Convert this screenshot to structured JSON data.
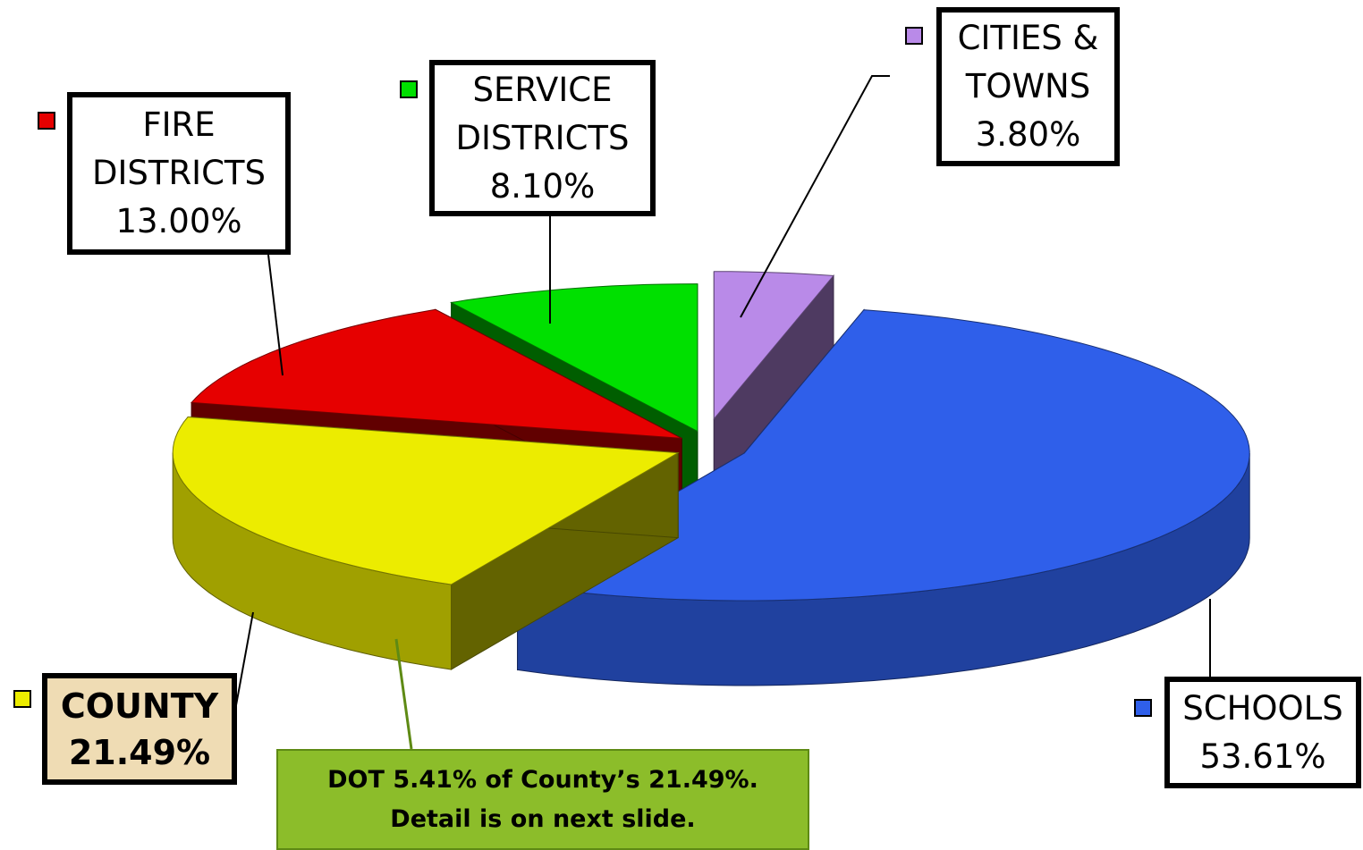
{
  "chart_data": {
    "type": "pie",
    "categories": [
      "CITIES & TOWNS",
      "SCHOOLS",
      "COUNTY",
      "FIRE DISTRICTS",
      "SERVICE DISTRICTS"
    ],
    "values": [
      3.8,
      53.61,
      21.49,
      13.0,
      8.1
    ],
    "value_labels": [
      "3.80%",
      "53.61%",
      "21.49%",
      "13.00%",
      "8.10%"
    ],
    "colors": [
      "#b98ae8",
      "#2f5fea",
      "#ecec00",
      "#e60000",
      "#00e000"
    ],
    "annotation": "DOT 5.41% of County’s 21.49%. Detail is on next slide."
  }
}
